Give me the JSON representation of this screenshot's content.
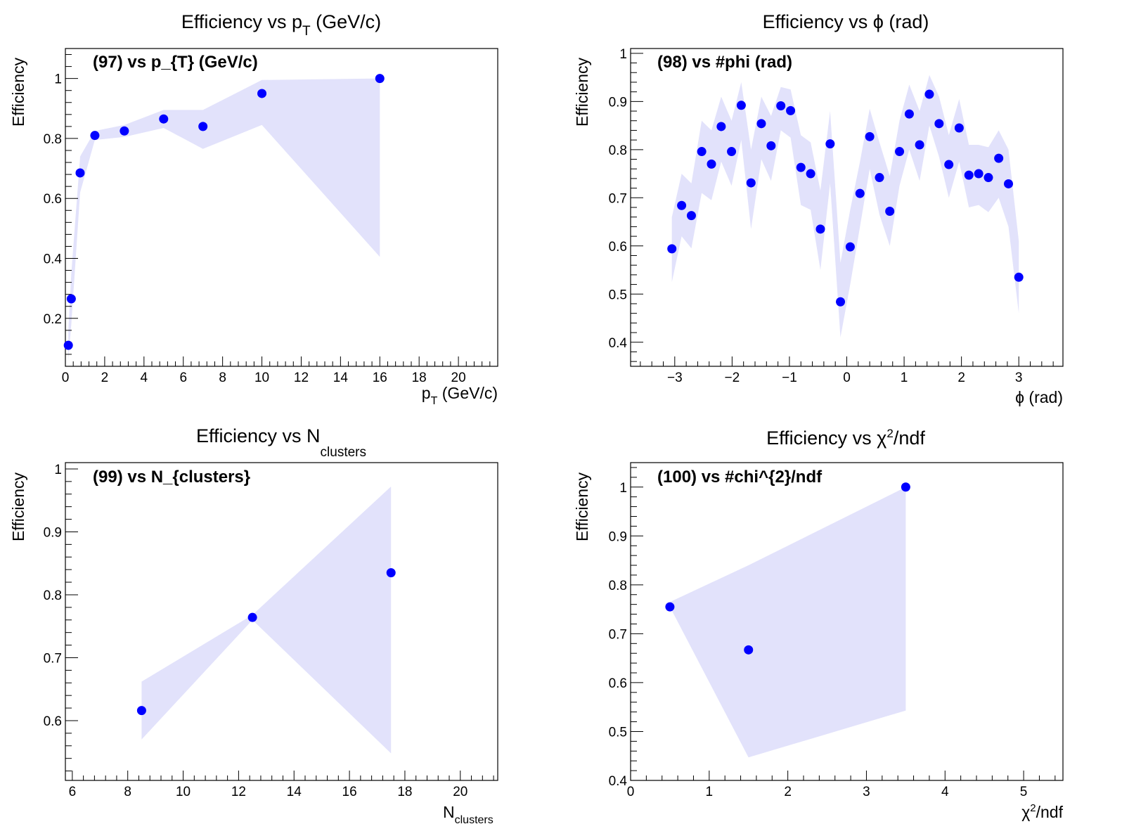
{
  "colors": {
    "marker": "#0000ff",
    "band": "#e2e2fb",
    "frame": "#000000"
  },
  "chart_data": [
    {
      "type": "scatter",
      "title": "Efficiency vs p_T (GeV/c)",
      "title_main": "Efficiency vs p",
      "title_sub": "T",
      "title_tail": " (GeV/c)",
      "inner_label": "(97) vs p_{T} (GeV/c)",
      "xlabel_main": "p",
      "xlabel_sub": "T",
      "xlabel_tail": " (GeV/c)",
      "ylabel": "Efficiency",
      "xlim": [
        0,
        22
      ],
      "ylim": [
        0.04,
        1.1
      ],
      "x_ticks": [
        0,
        2,
        4,
        6,
        8,
        10,
        12,
        14,
        16,
        18,
        20
      ],
      "x_tick_labels": [
        "0",
        "2",
        "4",
        "6",
        "8",
        "10",
        "12",
        "14",
        "16",
        "18",
        "20"
      ],
      "y_ticks": [
        0.2,
        0.4,
        0.6,
        0.8,
        1
      ],
      "y_tick_labels": [
        "0.2",
        "0.4",
        "0.6",
        "0.8",
        "1"
      ],
      "x": [
        0.15,
        0.3,
        0.75,
        1.5,
        3,
        5,
        7,
        10,
        16
      ],
      "y": [
        0.11,
        0.265,
        0.685,
        0.81,
        0.825,
        0.865,
        0.84,
        0.95,
        1.0
      ],
      "band_low": [
        0.06,
        0.18,
        0.62,
        0.795,
        0.805,
        0.835,
        0.765,
        0.845,
        0.405
      ],
      "band_high": [
        0.16,
        0.35,
        0.74,
        0.825,
        0.845,
        0.895,
        0.895,
        0.995,
        1.0
      ]
    },
    {
      "type": "scatter",
      "title": "Efficiency vs ϕ (rad)",
      "title_main": "Efficiency vs ϕ (rad)",
      "title_sub": "",
      "title_tail": "",
      "inner_label": "(98) vs #phi (rad)",
      "xlabel_main": "ϕ (rad)",
      "xlabel_sub": "",
      "xlabel_tail": "",
      "ylabel": "Efficiency",
      "xlim": [
        -3.77,
        3.77
      ],
      "ylim": [
        0.35,
        1.01
      ],
      "x_ticks": [
        -3,
        -2,
        -1,
        0,
        1,
        2,
        3
      ],
      "x_tick_labels": [
        "−3",
        "−2",
        "−1",
        "0",
        "1",
        "2",
        "3"
      ],
      "y_ticks": [
        0.4,
        0.5,
        0.6,
        0.7,
        0.8,
        0.9,
        1
      ],
      "y_tick_labels": [
        "0.4",
        "0.5",
        "0.6",
        "0.7",
        "0.8",
        "0.9",
        "1"
      ],
      "x": [
        -3.05,
        -2.88,
        -2.71,
        -2.53,
        -2.36,
        -2.19,
        -2.01,
        -1.84,
        -1.67,
        -1.49,
        -1.32,
        -1.15,
        -0.98,
        -0.8,
        -0.63,
        -0.46,
        -0.29,
        -0.11,
        0.06,
        0.23,
        0.4,
        0.57,
        0.75,
        0.92,
        1.09,
        1.27,
        1.44,
        1.61,
        1.78,
        1.96,
        2.13,
        2.3,
        2.47,
        2.65,
        2.82,
        3.0
      ],
      "y": [
        0.594,
        0.684,
        0.663,
        0.796,
        0.77,
        0.848,
        0.796,
        0.892,
        0.731,
        0.854,
        0.808,
        0.891,
        0.881,
        0.763,
        0.75,
        0.635,
        0.812,
        0.484,
        0.598,
        0.709,
        0.827,
        0.742,
        0.672,
        0.796,
        0.874,
        0.81,
        0.915,
        0.854,
        0.769,
        0.845,
        0.747,
        0.75,
        0.742,
        0.782,
        0.729,
        0.535
      ],
      "band_low": [
        0.525,
        0.62,
        0.595,
        0.71,
        0.695,
        0.775,
        0.725,
        0.82,
        0.635,
        0.78,
        0.735,
        0.84,
        0.825,
        0.685,
        0.675,
        0.55,
        0.73,
        0.41,
        0.52,
        0.64,
        0.76,
        0.665,
        0.6,
        0.725,
        0.8,
        0.735,
        0.85,
        0.785,
        0.7,
        0.775,
        0.68,
        0.685,
        0.67,
        0.7,
        0.64,
        0.46
      ],
      "band_high": [
        0.66,
        0.75,
        0.73,
        0.86,
        0.84,
        0.91,
        0.86,
        0.94,
        0.8,
        0.91,
        0.87,
        0.93,
        0.925,
        0.83,
        0.815,
        0.715,
        0.88,
        0.565,
        0.675,
        0.775,
        0.885,
        0.815,
        0.745,
        0.86,
        0.935,
        0.88,
        0.955,
        0.91,
        0.83,
        0.905,
        0.81,
        0.81,
        0.805,
        0.84,
        0.8,
        0.61
      ]
    },
    {
      "type": "scatter",
      "title": "Efficiency vs N_clusters",
      "title_main": "Efficiency vs N",
      "title_sub": "clusters",
      "title_tail": "",
      "inner_label": "(99) vs N_{clusters}",
      "xlabel_main": "N",
      "xlabel_sub": "clusters",
      "xlabel_tail": "",
      "ylabel": "Efficiency",
      "xlim": [
        5.75,
        21.35
      ],
      "ylim": [
        0.505,
        1.01
      ],
      "x_ticks": [
        6,
        8,
        10,
        12,
        14,
        16,
        18,
        20
      ],
      "x_tick_labels": [
        "6",
        "8",
        "10",
        "12",
        "14",
        "16",
        "18",
        "20"
      ],
      "y_ticks": [
        0.6,
        0.7,
        0.8,
        0.9,
        1
      ],
      "y_tick_labels": [
        "0.6",
        "0.7",
        "0.8",
        "0.9",
        "1"
      ],
      "x": [
        8.5,
        12.5,
        17.5
      ],
      "y": [
        0.616,
        0.764,
        0.835
      ],
      "band_low": [
        0.57,
        0.76,
        0.548
      ],
      "band_high": [
        0.662,
        0.768,
        0.972
      ]
    },
    {
      "type": "scatter",
      "title": "Efficiency vs χ²/ndf",
      "title_main": "Efficiency vs χ",
      "title_sup": "2",
      "title_tail": "/ndf",
      "inner_label": "(100) vs #chi^{2}/ndf",
      "xlabel_main": "χ",
      "xlabel_sup": "2",
      "xlabel_tail": "/ndf",
      "ylabel": "Efficiency",
      "xlim": [
        0,
        5.5
      ],
      "ylim": [
        0.4,
        1.05
      ],
      "x_ticks": [
        0,
        1,
        2,
        3,
        4,
        5
      ],
      "x_tick_labels": [
        "0",
        "1",
        "2",
        "3",
        "4",
        "5"
      ],
      "y_ticks": [
        0.4,
        0.5,
        0.6,
        0.7,
        0.8,
        0.9,
        1
      ],
      "y_tick_labels": [
        "0.4",
        "0.5",
        "0.6",
        "0.7",
        "0.8",
        "0.9",
        "1"
      ],
      "x": [
        0.5,
        1.5,
        3.5
      ],
      "y": [
        0.755,
        0.667,
        1.0
      ],
      "band_low": [
        0.755,
        0.447,
        0.543
      ],
      "band_high": [
        0.765,
        0.84,
        1.0
      ]
    }
  ]
}
